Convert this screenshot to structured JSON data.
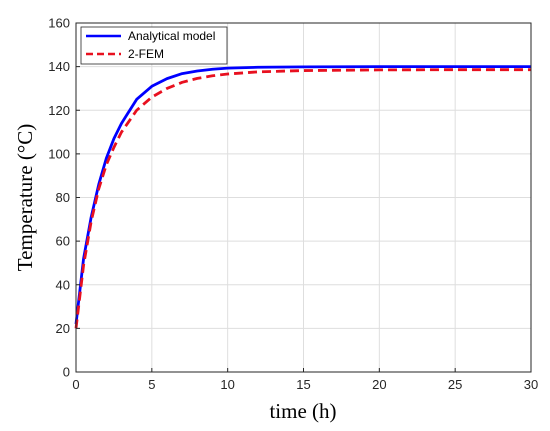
{
  "chart_data": {
    "type": "line",
    "xlabel": "time (h)",
    "ylabel": "Temperature (°C)",
    "xlim": [
      0,
      30
    ],
    "ylim": [
      0,
      160
    ],
    "x_ticks": [
      0,
      5,
      10,
      15,
      20,
      25,
      30
    ],
    "y_ticks": [
      0,
      20,
      40,
      60,
      80,
      100,
      120,
      140,
      160
    ],
    "grid": true,
    "legend_position": "top-left",
    "series": [
      {
        "name": "Analytical model",
        "color": "#0000ff",
        "style": "solid",
        "x": [
          0,
          0.5,
          1,
          1.5,
          2,
          2.5,
          3,
          4,
          5,
          6,
          7,
          8,
          9,
          10,
          12,
          15,
          20,
          25,
          30
        ],
        "y": [
          22,
          52,
          71,
          86,
          98,
          107,
          114,
          125,
          131,
          134.5,
          136.8,
          138.0,
          138.8,
          139.3,
          139.7,
          139.9,
          140,
          140,
          140
        ]
      },
      {
        "name": "2-FEM",
        "color": "#e8101f",
        "style": "dashed",
        "x": [
          0,
          0.5,
          1,
          1.5,
          2,
          2.5,
          3,
          4,
          5,
          6,
          7,
          8,
          9,
          10,
          12,
          15,
          20,
          25,
          30
        ],
        "y": [
          20,
          49,
          69,
          84,
          95,
          103,
          110,
          120,
          126,
          130,
          132.8,
          134.6,
          135.8,
          136.6,
          137.6,
          138.2,
          138.5,
          138.6,
          138.6
        ]
      }
    ]
  }
}
